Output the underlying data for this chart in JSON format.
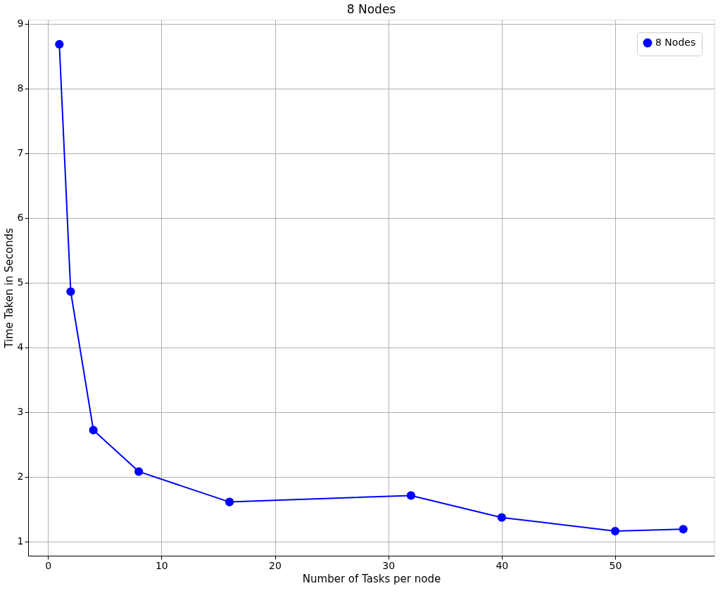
{
  "chart_data": {
    "type": "line",
    "title": "8 Nodes",
    "xlabel": "Number of Tasks per node",
    "ylabel": "Time Taken in Seconds",
    "x": [
      1,
      2,
      4,
      8,
      16,
      32,
      40,
      50,
      56
    ],
    "series": [
      {
        "name": "8 Nodes",
        "color": "#0000ff",
        "values": [
          8.68,
          4.86,
          2.72,
          2.08,
          1.61,
          1.71,
          1.37,
          1.16,
          1.19
        ]
      }
    ],
    "xlim": [
      -1.75,
      58.75
    ],
    "ylim": [
      0.78,
      9.06
    ],
    "xticks": [
      0,
      10,
      20,
      30,
      40,
      50
    ],
    "yticks": [
      1,
      2,
      3,
      4,
      5,
      6,
      7,
      8,
      9
    ],
    "grid": true,
    "legend": "top right",
    "marker": "circle",
    "line_style": "solid"
  }
}
